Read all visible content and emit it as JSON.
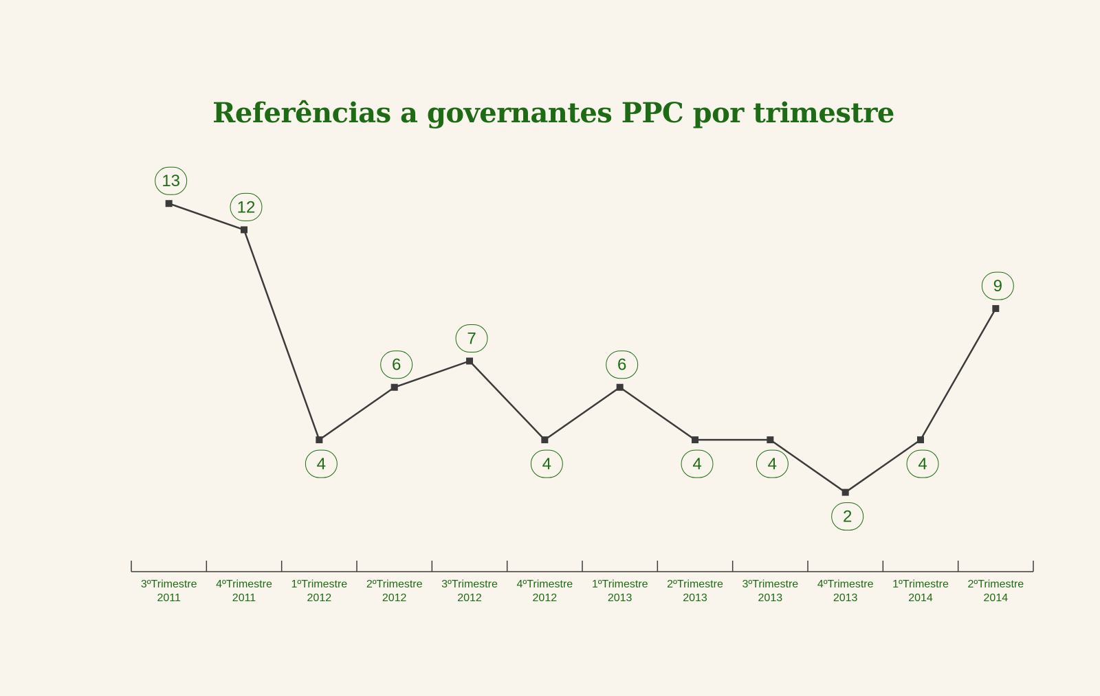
{
  "colors": {
    "background": "#faf5ec",
    "title": "#1d6b14",
    "line": "#3b3b3b",
    "label": "#1d6b14",
    "axis": "#3b3b3b"
  },
  "chart_data": {
    "type": "line",
    "title": "Referências a governantes PPC por trimestre",
    "xlabel": "",
    "ylabel": "",
    "ylim": [
      0,
      14
    ],
    "grid": false,
    "legend": "none",
    "categories": [
      [
        "3ºTrimestre",
        "2011"
      ],
      [
        "4ºTrimestre",
        "2011"
      ],
      [
        "1ºTrimestre",
        "2012"
      ],
      [
        "2ºTrimestre",
        "2012"
      ],
      [
        "3ºTrimestre",
        "2012"
      ],
      [
        "4ºTrimestre",
        "2012"
      ],
      [
        "1ºTrimestre",
        "2013"
      ],
      [
        "2ºTrimestre",
        "2013"
      ],
      [
        "3ºTrimestre",
        "2013"
      ],
      [
        "4ºTrimestre",
        "2013"
      ],
      [
        "1ºTrimestre",
        "2014"
      ],
      [
        "2ºTrimestre",
        "2014"
      ]
    ],
    "values": [
      13,
      12,
      4,
      6,
      7,
      4,
      6,
      4,
      4,
      2,
      4,
      9
    ],
    "label_positions": [
      "above",
      "above",
      "below",
      "above",
      "above",
      "below",
      "above",
      "below",
      "below",
      "below",
      "below",
      "above"
    ]
  }
}
